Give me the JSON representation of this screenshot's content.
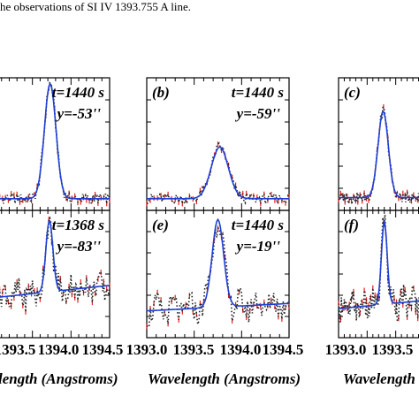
{
  "caption": "he observations of SI IV 1393.755 A line.",
  "colors": {
    "model": "#1f3fd6",
    "observed_dots": "#222222",
    "error_bars": "#e0201c",
    "axis": "#000000"
  },
  "chart_data": [
    {
      "panel": "a",
      "row": 0,
      "col": 0,
      "type": "line",
      "label": "",
      "time": "t=1440 s",
      "position": "y=-53''",
      "xlim": [
        1393.0,
        1394.5
      ],
      "peak_center": 1393.73,
      "peak_amp": 1.0,
      "peak_sigma": 0.075,
      "baseline": 0.04
    },
    {
      "panel": "b",
      "row": 0,
      "col": 1,
      "type": "line",
      "label": "(b)",
      "time": "t=1440 s",
      "position": "y=-59''",
      "xlim": [
        1393.0,
        1394.5
      ],
      "peak_center": 1393.77,
      "peak_amp": 0.45,
      "peak_sigma": 0.09,
      "baseline": 0.04
    },
    {
      "panel": "c",
      "row": 0,
      "col": 2,
      "type": "line",
      "label": "(c)",
      "time": "",
      "position": "",
      "xlim": [
        1393.0,
        1394.5
      ],
      "peak_center": 1393.78,
      "peak_amp": 0.75,
      "peak_sigma": 0.09,
      "baseline": 0.05
    },
    {
      "panel": "d",
      "row": 1,
      "col": 0,
      "type": "line",
      "label": "",
      "time": "t=1368 s",
      "position": "y=-83''",
      "xlim": [
        1393.0,
        1394.5
      ],
      "peak_center": 1393.72,
      "peak_amp": 0.65,
      "peak_sigma": 0.045,
      "baseline": 0.3
    },
    {
      "panel": "e",
      "row": 1,
      "col": 1,
      "type": "line",
      "label": "(e)",
      "time": "t=1440 s",
      "position": "y=-19''",
      "xlim": [
        1393.0,
        1394.5
      ],
      "peak_center": 1393.75,
      "peak_amp": 0.8,
      "peak_sigma": 0.06,
      "baseline": 0.18
    },
    {
      "panel": "f",
      "row": 1,
      "col": 2,
      "type": "line",
      "label": "(f)",
      "time": "",
      "position": "",
      "xlim": [
        1393.0,
        1394.5
      ],
      "peak_center": 1393.8,
      "peak_amp": 0.75,
      "peak_sigma": 0.05,
      "baseline": 0.2
    }
  ],
  "axes": {
    "x_ticks": [
      "1393.0",
      "1393.5",
      "1394.0",
      "1394.5"
    ],
    "x_ticks_panel1": [
      "1393.5",
      "1394.0",
      "1394.5"
    ],
    "x_ticks_panel3": [
      "1393.0",
      "1393.5"
    ],
    "xlabel_panel1": "length (Angstroms)",
    "xlabel_panel2": "Wavelength (Angstroms)",
    "xlabel_panel3": "Wavelength ("
  }
}
